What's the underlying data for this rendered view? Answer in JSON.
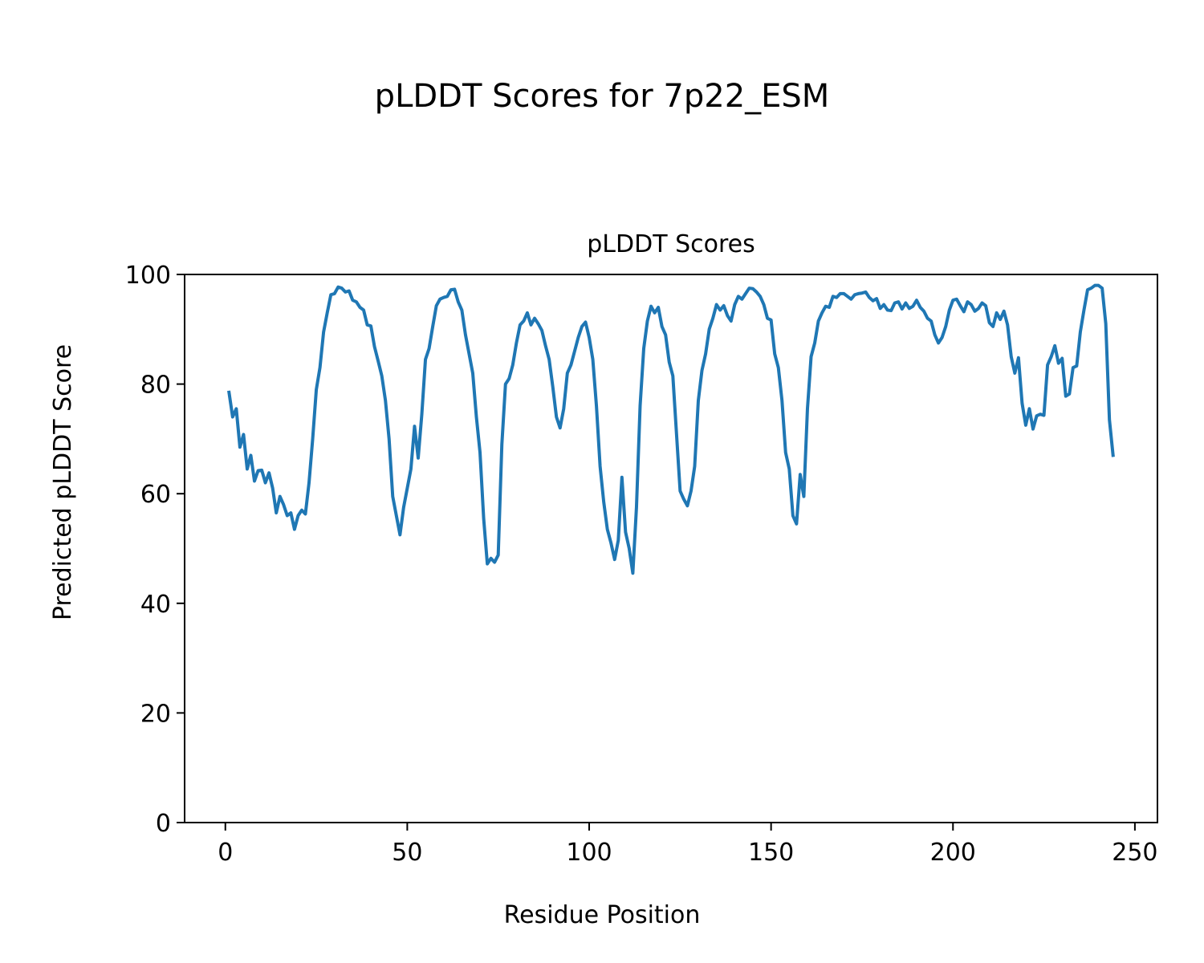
{
  "figure": {
    "suptitle": "pLDDT Scores for 7p22_ESM"
  },
  "chart_data": {
    "type": "line",
    "title": "pLDDT Scores",
    "xlabel": "Residue Position",
    "ylabel": "Predicted pLDDT Score",
    "xlim": [
      -11.2,
      256.2
    ],
    "ylim": [
      0,
      100
    ],
    "xticks": [
      0,
      50,
      100,
      150,
      200,
      250
    ],
    "yticks": [
      0,
      20,
      40,
      60,
      80,
      100
    ],
    "xtick_labels": [
      "0",
      "50",
      "100",
      "150",
      "200",
      "250"
    ],
    "ytick_labels": [
      "0",
      "20",
      "40",
      "60",
      "80",
      "100"
    ],
    "grid": false,
    "legend": "none",
    "series": [
      {
        "color": "#1f77b4",
        "x": [
          1,
          2,
          3,
          4,
          5,
          6,
          7,
          8,
          9,
          10,
          11,
          12,
          13,
          14,
          15,
          16,
          17,
          18,
          19,
          20,
          21,
          22,
          23,
          24,
          25,
          26,
          27,
          28,
          29,
          30,
          31,
          32,
          33,
          34,
          35,
          36,
          37,
          38,
          39,
          40,
          41,
          42,
          43,
          44,
          45,
          46,
          47,
          48,
          49,
          50,
          51,
          52,
          53,
          54,
          55,
          56,
          57,
          58,
          59,
          60,
          61,
          62,
          63,
          64,
          65,
          66,
          67,
          68,
          69,
          70,
          71,
          72,
          73,
          74,
          75,
          76,
          77,
          78,
          79,
          80,
          81,
          82,
          83,
          84,
          85,
          86,
          87,
          88,
          89,
          90,
          91,
          92,
          93,
          94,
          95,
          96,
          97,
          98,
          99,
          100,
          101,
          102,
          103,
          104,
          105,
          106,
          107,
          108,
          109,
          110,
          111,
          112,
          113,
          114,
          115,
          116,
          117,
          118,
          119,
          120,
          121,
          122,
          123,
          124,
          125,
          126,
          127,
          128,
          129,
          130,
          131,
          132,
          133,
          134,
          135,
          136,
          137,
          138,
          139,
          140,
          141,
          142,
          143,
          144,
          145,
          146,
          147,
          148,
          149,
          150,
          151,
          152,
          153,
          154,
          155,
          156,
          157,
          158,
          159,
          160,
          161,
          162,
          163,
          164,
          165,
          166,
          167,
          168,
          169,
          170,
          171,
          172,
          173,
          174,
          175,
          176,
          177,
          178,
          179,
          180,
          181,
          182,
          183,
          184,
          185,
          186,
          187,
          188,
          189,
          190,
          191,
          192,
          193,
          194,
          195,
          196,
          197,
          198,
          199,
          200,
          201,
          202,
          203,
          204,
          205,
          206,
          207,
          208,
          209,
          210,
          211,
          212,
          213,
          214,
          215,
          216,
          217,
          218,
          219,
          220,
          221,
          222,
          223,
          224,
          225,
          226,
          227,
          228,
          229,
          230,
          231,
          232,
          233,
          234,
          235,
          236,
          237,
          238,
          239,
          240,
          241,
          242,
          243,
          244
        ],
        "y": [
          78.5,
          74.0,
          75.5,
          68.5,
          70.8,
          64.5,
          67.0,
          62.3,
          64.2,
          64.3,
          62.0,
          63.8,
          61.0,
          56.5,
          59.5,
          58.0,
          56.0,
          56.5,
          53.5,
          56.0,
          57.0,
          56.3,
          62.0,
          70.0,
          79.0,
          83.0,
          89.5,
          93.0,
          96.3,
          96.5,
          97.7,
          97.5,
          96.8,
          97.0,
          95.3,
          95.0,
          94.0,
          93.5,
          90.8,
          90.6,
          86.8,
          84.2,
          81.5,
          77.0,
          70.0,
          59.5,
          56.0,
          52.5,
          57.5,
          61.0,
          64.5,
          72.3,
          66.5,
          74.5,
          84.5,
          86.5,
          90.5,
          94.3,
          95.5,
          95.8,
          96.0,
          97.2,
          97.3,
          95.0,
          93.5,
          89.0,
          85.5,
          82.0,
          74.0,
          67.5,
          55.5,
          47.2,
          48.2,
          47.5,
          48.8,
          69.0,
          80.0,
          81.0,
          83.5,
          87.5,
          90.8,
          91.5,
          93.0,
          90.8,
          92.0,
          91.0,
          89.8,
          87.0,
          84.5,
          79.5,
          74.0,
          72.0,
          75.5,
          82.0,
          83.5,
          86.0,
          88.5,
          90.5,
          91.3,
          88.5,
          84.5,
          76.0,
          65.0,
          58.5,
          53.5,
          51.0,
          48.0,
          51.5,
          63.0,
          53.0,
          50.0,
          45.5,
          57.5,
          76.0,
          86.5,
          91.5,
          94.2,
          93.0,
          94.0,
          90.5,
          89.0,
          84.0,
          81.5,
          71.0,
          60.5,
          59.0,
          57.8,
          60.5,
          65.0,
          77.0,
          82.5,
          85.5,
          90.0,
          92.0,
          94.5,
          93.5,
          94.3,
          92.5,
          91.5,
          94.5,
          96.0,
          95.5,
          96.5,
          97.5,
          97.4,
          96.8,
          96.0,
          94.5,
          92.0,
          91.7,
          85.5,
          83.0,
          77.0,
          67.5,
          64.5,
          56.0,
          54.5,
          63.5,
          59.5,
          75.5,
          85.0,
          87.5,
          91.5,
          93.0,
          94.2,
          94.0,
          96.0,
          95.8,
          96.5,
          96.5,
          96.0,
          95.5,
          96.3,
          96.5,
          96.6,
          96.8,
          95.8,
          95.2,
          95.6,
          93.8,
          94.5,
          93.5,
          93.4,
          94.8,
          95.0,
          93.7,
          94.8,
          93.8,
          94.2,
          95.3,
          94.0,
          93.3,
          92.0,
          91.5,
          89.0,
          87.5,
          88.5,
          90.5,
          93.5,
          95.3,
          95.5,
          94.3,
          93.2,
          95.0,
          94.5,
          93.3,
          93.8,
          94.8,
          94.3,
          91.2,
          90.5,
          93.0,
          91.8,
          93.3,
          90.8,
          85.0,
          82.0,
          84.8,
          76.5,
          72.5,
          75.5,
          71.8,
          74.2,
          74.5,
          74.3,
          83.5,
          85.0,
          87.0,
          83.8,
          84.7,
          77.8,
          78.2,
          83.0,
          83.3,
          89.5,
          93.5,
          97.2,
          97.5,
          98.0,
          98.0,
          97.5,
          91.0,
          73.5,
          67.0
        ]
      }
    ]
  }
}
